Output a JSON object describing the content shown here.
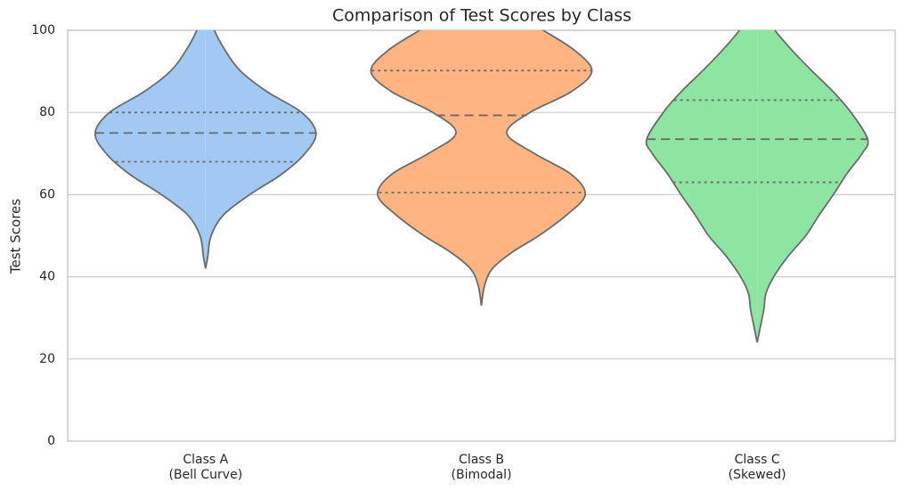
{
  "chart_data": {
    "type": "violin",
    "title": "Comparison of Test Scores by Class",
    "ylabel": "Test Scores",
    "categories": [
      "Class A\n(Bell Curve)",
      "Class B\n(Bimodal)",
      "Class C\n(Skewed)"
    ],
    "ylim": [
      0,
      100
    ],
    "yticks": [
      0,
      20,
      40,
      60,
      80,
      100
    ],
    "grid": true,
    "outline_color": "#6b6b6b",
    "violins": [
      {
        "color": "#a1c9f4",
        "y": [
          42,
          45,
          50,
          55,
          60,
          65,
          70,
          75,
          80,
          85,
          90,
          95,
          100,
          104
        ],
        "density": [
          0,
          0.02,
          0.05,
          0.16,
          0.4,
          0.69,
          0.9,
          1,
          0.87,
          0.56,
          0.32,
          0.18,
          0.08,
          0.04
        ],
        "quartiles": [
          68,
          75,
          80
        ]
      },
      {
        "color": "#ffb482",
        "y": [
          33,
          38,
          42,
          46,
          50,
          55,
          60,
          65,
          70,
          75,
          80,
          85,
          90,
          95,
          100,
          104
        ],
        "density": [
          0,
          0.03,
          0.1,
          0.28,
          0.52,
          0.77,
          0.94,
          0.81,
          0.48,
          0.23,
          0.44,
          0.81,
          1,
          0.85,
          0.56,
          0.32
        ],
        "quartiles": [
          60.5,
          79.3,
          90.2
        ]
      },
      {
        "color": "#8de5a1",
        "y": [
          24,
          28,
          32,
          36,
          40,
          45,
          50,
          55,
          60,
          65,
          70,
          73.5,
          80,
          85,
          90,
          95,
          100,
          104
        ],
        "density": [
          0,
          0.03,
          0.06,
          0.08,
          0.15,
          0.28,
          0.44,
          0.56,
          0.69,
          0.81,
          0.95,
          1,
          0.85,
          0.69,
          0.5,
          0.32,
          0.16,
          0.06
        ],
        "quartiles": [
          63,
          73.5,
          83
        ]
      }
    ]
  }
}
